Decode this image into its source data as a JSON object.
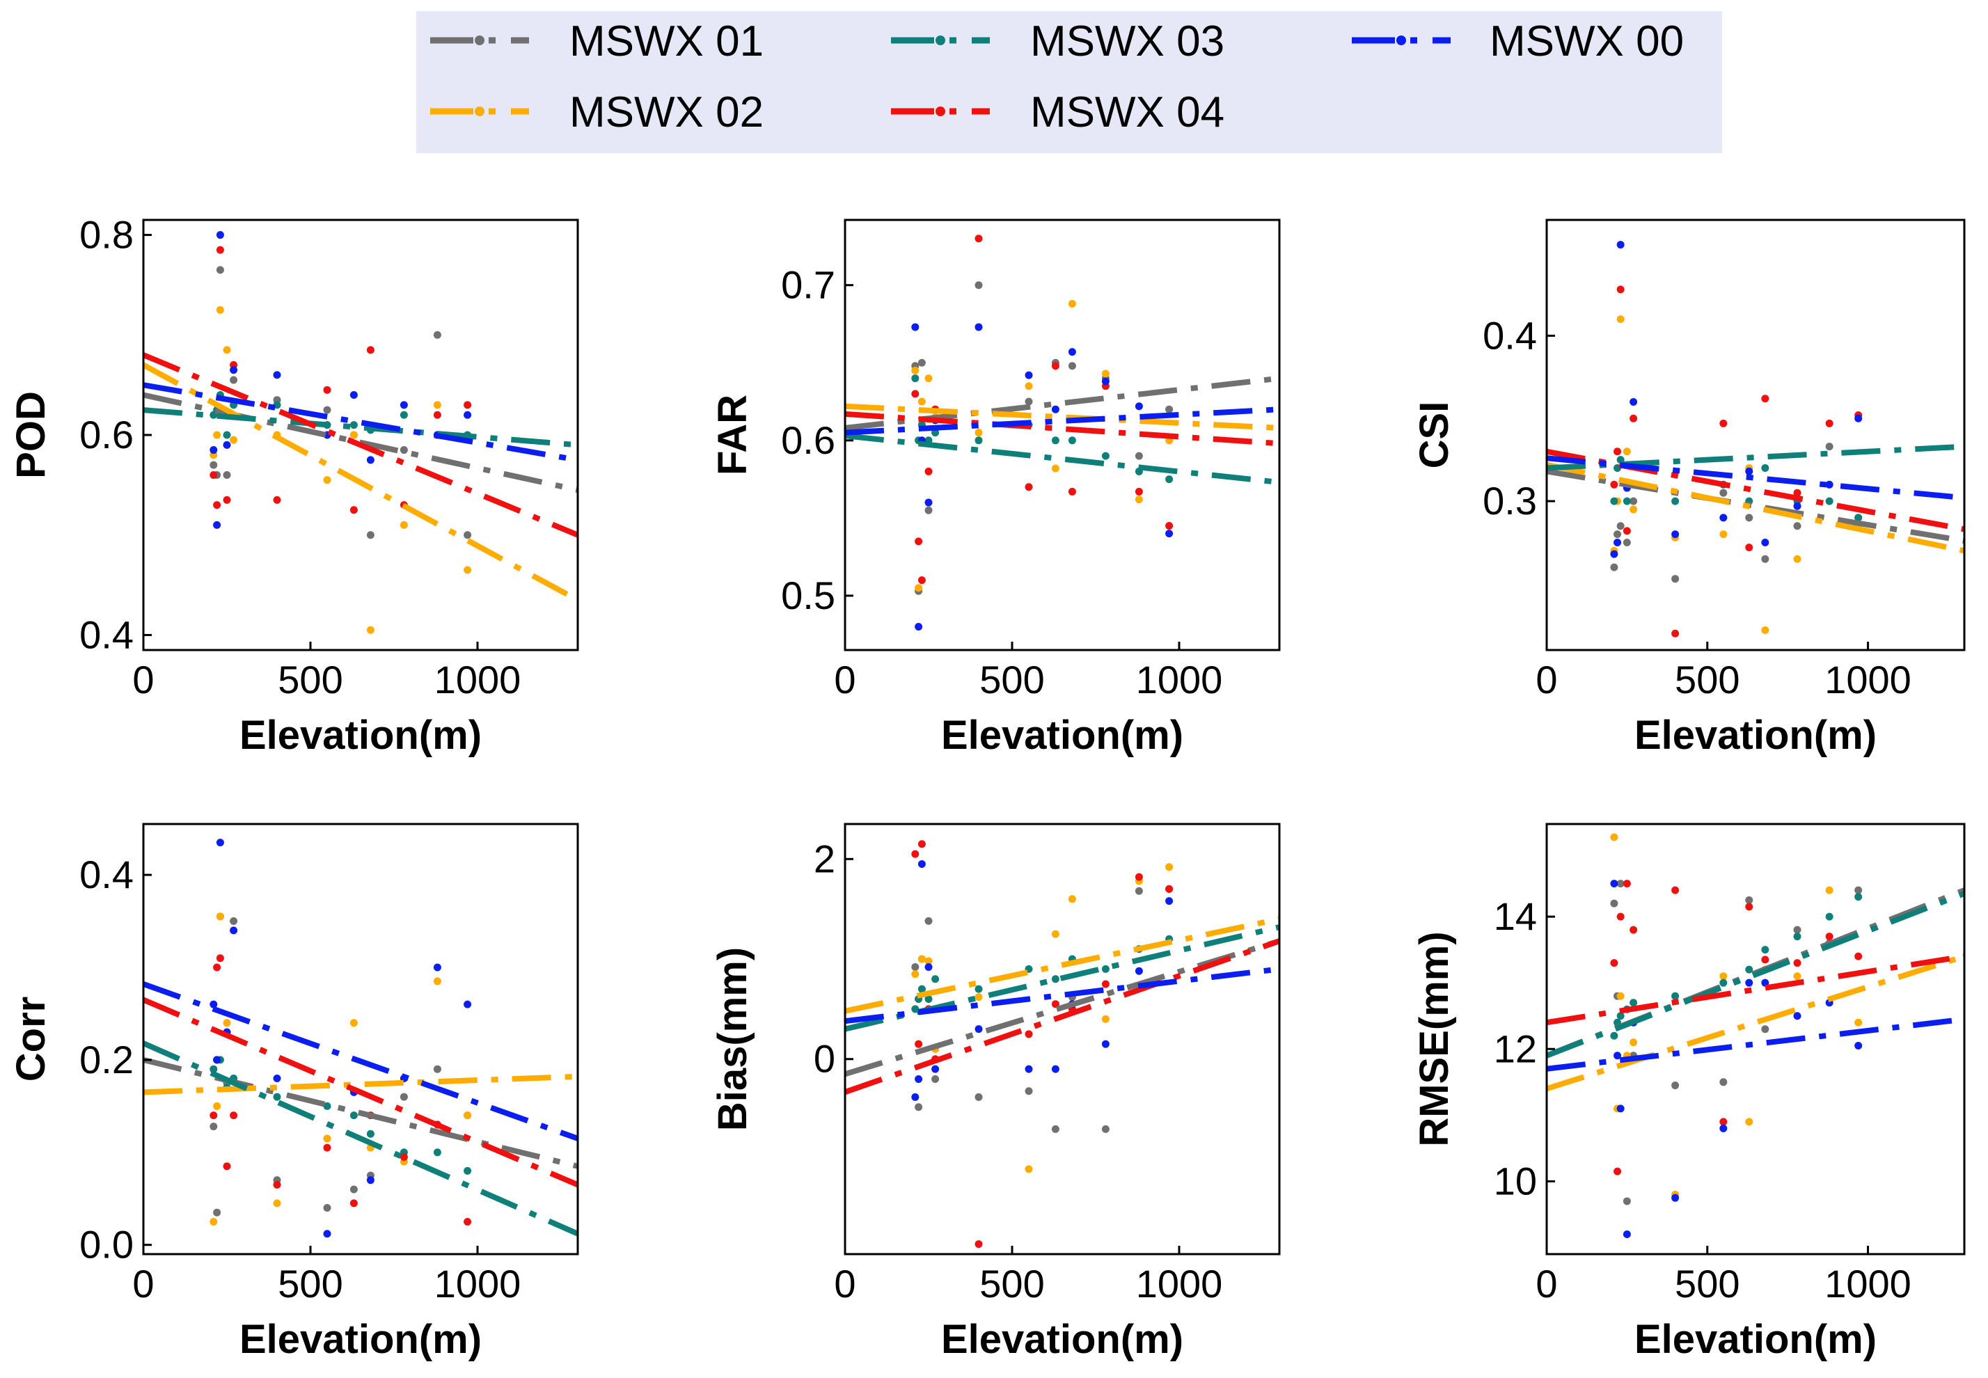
{
  "chart_data": {
    "type": "scatter",
    "legend": {
      "position": "top-center",
      "background": "#e6e8f8",
      "entries": [
        {
          "name": "MSWX 01",
          "color": "#707070"
        },
        {
          "name": "MSWX 03",
          "color": "#0f7f7a"
        },
        {
          "name": "MSWX 00",
          "color": "#0a1ef0"
        },
        {
          "name": "MSWX 02",
          "color": "#ffac00"
        },
        {
          "name": "MSWX 04",
          "color": "#f01010"
        }
      ]
    },
    "series_colors": {
      "MSWX 00": "#0a1ef0",
      "MSWX 01": "#707070",
      "MSWX 02": "#ffac00",
      "MSWX 03": "#0f7f7a",
      "MSWX 04": "#f01010"
    },
    "elevations": [
      210,
      220,
      230,
      250,
      270,
      400,
      550,
      630,
      680,
      780,
      880,
      970
    ],
    "panels": [
      {
        "id": "pod",
        "ylabel": "POD",
        "xlabel": "Elevation(m)",
        "xlim": [
          0,
          1300
        ],
        "ylim": [
          0.385,
          0.815
        ],
        "xticks": [
          0,
          500,
          1000
        ],
        "yticks": [
          0.4,
          0.6,
          0.8
        ],
        "ytick_labels": [
          "0.4",
          "0.6",
          "0.8"
        ],
        "trendlines": {
          "MSWX 01": [
            0.64,
            0.545
          ],
          "MSWX 02": [
            0.67,
            0.435
          ],
          "MSWX 03": [
            0.625,
            0.59
          ],
          "MSWX 04": [
            0.68,
            0.5
          ],
          "MSWX 00": [
            0.65,
            0.575
          ]
        },
        "points": {
          "MSWX 01": [
            0.57,
            0.56,
            0.765,
            0.56,
            0.655,
            0.635,
            0.625,
            0.6,
            0.5,
            0.585,
            0.7,
            0.5
          ],
          "MSWX 02": [
            0.58,
            0.6,
            0.725,
            0.685,
            0.595,
            0.6,
            0.555,
            0.6,
            0.405,
            0.51,
            0.63,
            0.465
          ],
          "MSWX 03": [
            0.62,
            0.625,
            0.64,
            0.6,
            0.63,
            0.63,
            0.61,
            0.61,
            0.605,
            0.62,
            0.6,
            0.6
          ],
          "MSWX 04": [
            0.56,
            0.53,
            0.785,
            0.535,
            0.67,
            0.535,
            0.645,
            0.525,
            0.685,
            0.53,
            0.62,
            0.63
          ],
          "MSWX 00": [
            0.585,
            0.51,
            0.8,
            0.59,
            0.665,
            0.66,
            0.6,
            0.64,
            0.575,
            0.63,
            0.6,
            0.62
          ]
        }
      },
      {
        "id": "far",
        "ylabel": "FAR",
        "xlabel": "Elevation(m)",
        "xlim": [
          0,
          1300
        ],
        "ylim": [
          0.465,
          0.742
        ],
        "xticks": [
          0,
          500,
          1000
        ],
        "yticks": [
          0.5,
          0.6,
          0.7
        ],
        "ytick_labels": [
          "0.5",
          "0.6",
          "0.7"
        ],
        "trendlines": {
          "MSWX 01": [
            0.608,
            0.64
          ],
          "MSWX 02": [
            0.622,
            0.608
          ],
          "MSWX 03": [
            0.603,
            0.573
          ],
          "MSWX 04": [
            0.617,
            0.598
          ],
          "MSWX 00": [
            0.605,
            0.62
          ]
        },
        "points": {
          "MSWX 01": [
            0.648,
            0.503,
            0.65,
            0.555,
            0.62,
            0.7,
            0.625,
            0.65,
            0.648,
            0.64,
            0.59,
            0.62
          ],
          "MSWX 02": [
            0.645,
            0.505,
            0.625,
            0.64,
            0.615,
            0.605,
            0.635,
            0.582,
            0.688,
            0.643,
            0.562,
            0.6
          ],
          "MSWX 03": [
            0.64,
            0.6,
            0.61,
            0.6,
            0.605,
            0.6,
            0.61,
            0.6,
            0.6,
            0.59,
            0.58,
            0.575
          ],
          "MSWX 04": [
            0.63,
            0.535,
            0.51,
            0.58,
            0.62,
            0.73,
            0.57,
            0.648,
            0.567,
            0.635,
            0.567,
            0.545
          ],
          "MSWX 00": [
            0.673,
            0.48,
            0.6,
            0.56,
            0.613,
            0.673,
            0.642,
            0.62,
            0.657,
            0.638,
            0.622,
            0.54
          ]
        }
      },
      {
        "id": "csi",
        "ylabel": "CSI",
        "xlabel": "Elevation(m)",
        "xlim": [
          0,
          1300
        ],
        "ylim": [
          0.21,
          0.47
        ],
        "xticks": [
          0,
          500,
          1000
        ],
        "yticks": [
          0.3,
          0.4
        ],
        "ytick_labels": [
          "0.3",
          "0.4"
        ],
        "trendlines": {
          "MSWX 01": [
            0.318,
            0.276
          ],
          "MSWX 02": [
            0.322,
            0.27
          ],
          "MSWX 03": [
            0.32,
            0.333
          ],
          "MSWX 04": [
            0.33,
            0.283
          ],
          "MSWX 00": [
            0.326,
            0.302
          ]
        },
        "points": {
          "MSWX 01": [
            0.26,
            0.28,
            0.285,
            0.275,
            0.3,
            0.253,
            0.305,
            0.29,
            0.265,
            0.285,
            0.333,
            0.29
          ],
          "MSWX 02": [
            0.27,
            0.3,
            0.41,
            0.33,
            0.295,
            0.278,
            0.28,
            0.32,
            0.222,
            0.265,
            0.3,
            0.285
          ],
          "MSWX 03": [
            0.3,
            0.32,
            0.325,
            0.3,
            0.31,
            0.3,
            0.31,
            0.3,
            0.32,
            0.3,
            0.3,
            0.29
          ],
          "MSWX 04": [
            0.31,
            0.33,
            0.428,
            0.282,
            0.35,
            0.22,
            0.347,
            0.272,
            0.362,
            0.305,
            0.347,
            0.352
          ],
          "MSWX 00": [
            0.268,
            0.275,
            0.455,
            0.308,
            0.36,
            0.28,
            0.29,
            0.318,
            0.275,
            0.297,
            0.31,
            0.35
          ]
        }
      },
      {
        "id": "corr",
        "ylabel": "Corr",
        "xlabel": "Elevation(m)",
        "xlim": [
          0,
          1300
        ],
        "ylim": [
          -0.01,
          0.455
        ],
        "xticks": [
          0,
          500,
          1000
        ],
        "yticks": [
          0.0,
          0.2,
          0.4
        ],
        "ytick_labels": [
          "0.0",
          "0.2",
          "0.4"
        ],
        "trendlines": {
          "MSWX 01": [
            0.2,
            0.085
          ],
          "MSWX 02": [
            0.165,
            0.182
          ],
          "MSWX 03": [
            0.218,
            0.012
          ],
          "MSWX 04": [
            0.265,
            0.065
          ],
          "MSWX 00": [
            0.282,
            0.115
          ]
        },
        "points": {
          "MSWX 01": [
            0.128,
            0.035,
            0.355,
            0.175,
            0.35,
            0.07,
            0.04,
            0.06,
            0.075,
            0.16,
            0.19,
            0.14
          ],
          "MSWX 02": [
            0.025,
            0.15,
            0.355,
            0.24,
            0.18,
            0.045,
            0.115,
            0.24,
            0.105,
            0.09,
            0.285,
            0.14
          ],
          "MSWX 03": [
            0.19,
            0.2,
            0.2,
            0.17,
            0.18,
            0.16,
            0.15,
            0.14,
            0.12,
            0.1,
            0.1,
            0.08
          ],
          "MSWX 04": [
            0.14,
            0.3,
            0.31,
            0.085,
            0.14,
            0.065,
            0.105,
            0.045,
            0.14,
            0.095,
            0.13,
            0.025
          ],
          "MSWX 00": [
            0.26,
            0.2,
            0.435,
            0.23,
            0.34,
            0.18,
            0.012,
            0.165,
            0.07,
            0.18,
            0.3,
            0.26
          ]
        }
      },
      {
        "id": "bias",
        "ylabel": "Bias(mm)",
        "xlabel": "Elevation(m)",
        "xlim": [
          0,
          1300
        ],
        "ylim": [
          -1.95,
          2.35
        ],
        "xticks": [
          0,
          500,
          1000
        ],
        "yticks": [
          0,
          2
        ],
        "ytick_labels": [
          "0",
          "2"
        ],
        "trendlines": {
          "MSWX 01": [
            -0.15,
            1.18
          ],
          "MSWX 02": [
            0.48,
            1.4
          ],
          "MSWX 03": [
            0.3,
            1.32
          ],
          "MSWX 04": [
            -0.33,
            1.18
          ],
          "MSWX 00": [
            0.38,
            0.9
          ]
        },
        "points": {
          "MSWX 01": [
            0.92,
            -0.48,
            1.0,
            1.38,
            -0.2,
            -0.38,
            -0.32,
            -0.7,
            0.62,
            -0.7,
            1.68,
            1.7
          ],
          "MSWX 02": [
            0.85,
            0.6,
            1.0,
            0.98,
            0.1,
            0.62,
            -1.1,
            1.25,
            1.6,
            0.4,
            1.78,
            1.92
          ],
          "MSWX 03": [
            0.5,
            0.6,
            0.7,
            0.6,
            0.8,
            0.7,
            0.9,
            0.8,
            1.0,
            0.9,
            1.1,
            1.2
          ],
          "MSWX 04": [
            2.05,
            0.15,
            2.15,
            0.5,
            0.0,
            -1.85,
            0.25,
            0.55,
            0.5,
            0.75,
            1.82,
            1.7
          ],
          "MSWX 00": [
            -0.38,
            -0.2,
            1.95,
            0.92,
            -0.1,
            0.3,
            -0.1,
            -0.1,
            0.55,
            0.15,
            0.88,
            1.58
          ]
        }
      },
      {
        "id": "rmse",
        "ylabel": "RMSE(mm)",
        "xlabel": "Elevation(m)",
        "xlim": [
          0,
          1300
        ],
        "ylim": [
          8.9,
          15.4
        ],
        "xticks": [
          0,
          500,
          1000
        ],
        "yticks": [
          10,
          12,
          14
        ],
        "ytick_labels": [
          "10",
          "12",
          "14"
        ],
        "trendlines": {
          "MSWX 01": [
            11.9,
            14.4
          ],
          "MSWX 02": [
            11.4,
            13.4
          ],
          "MSWX 03": [
            11.9,
            14.35
          ],
          "MSWX 04": [
            12.4,
            13.4
          ],
          "MSWX 00": [
            11.7,
            12.45
          ]
        },
        "points": {
          "MSWX 01": [
            14.2,
            12.8,
            14.5,
            9.7,
            11.9,
            11.45,
            11.5,
            14.25,
            12.3,
            13.8,
            13.6,
            14.4
          ],
          "MSWX 02": [
            15.2,
            11.1,
            12.8,
            11.9,
            12.1,
            9.8,
            13.1,
            10.9,
            13.2,
            13.1,
            14.4,
            12.4
          ],
          "MSWX 03": [
            12.2,
            12.4,
            12.5,
            12.6,
            12.7,
            12.8,
            13.0,
            13.2,
            13.5,
            13.7,
            14.0,
            14.3
          ],
          "MSWX 04": [
            13.3,
            10.15,
            14.0,
            14.5,
            13.8,
            14.4,
            10.9,
            14.15,
            13.35,
            13.3,
            13.7,
            13.4
          ],
          "MSWX 00": [
            14.5,
            11.9,
            11.1,
            9.2,
            12.4,
            9.75,
            10.8,
            13.0,
            13.0,
            12.5,
            12.7,
            12.05
          ]
        }
      }
    ]
  }
}
